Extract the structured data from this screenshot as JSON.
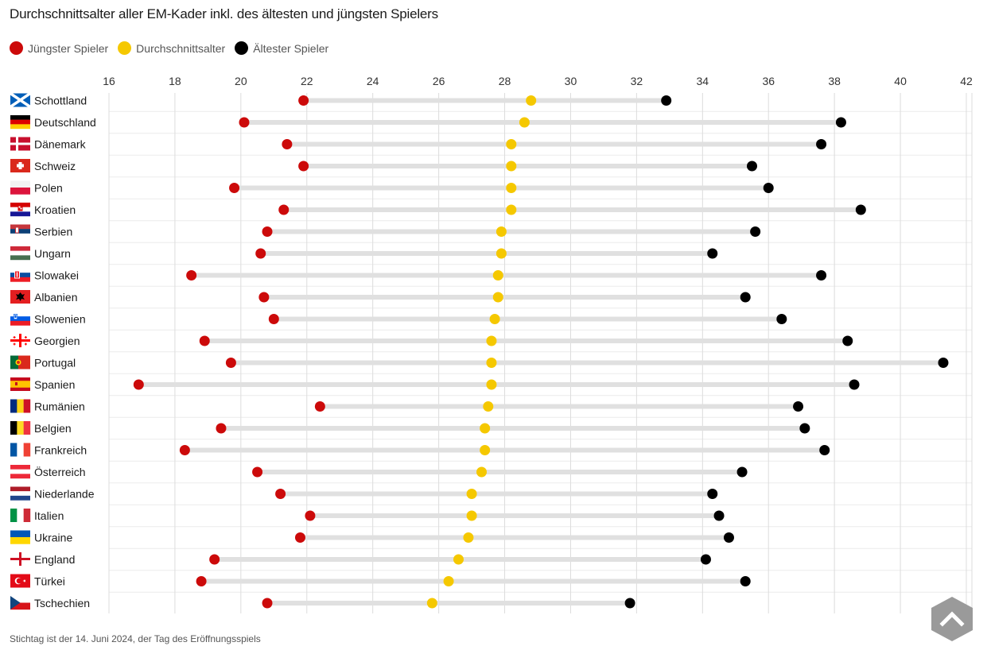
{
  "title": "Durchschnittsalter aller EM-Kader inkl. des ältesten und jüngsten Spielers",
  "legend": [
    {
      "label": "Jüngster Spieler",
      "color": "#cc0a0a"
    },
    {
      "label": "Durchschnittsalter",
      "color": "#f5c800"
    },
    {
      "label": "Ältester Spieler",
      "color": "#000000"
    }
  ],
  "footnote": "Stichtag ist der 14. Juni 2024, der Tag des Eröffnungsspiels",
  "scroll_icon": "chevron-up-icon",
  "chart_data": {
    "type": "dumbbell",
    "title": "Durchschnittsalter aller EM-Kader inkl. des ältesten und jüngsten Spielers",
    "xlim": [
      16,
      42
    ],
    "xticks": [
      "16",
      "18",
      "20",
      "22",
      "24",
      "26",
      "28",
      "30",
      "32",
      "34",
      "36",
      "38",
      "40",
      "42"
    ],
    "tick_values": [
      16,
      18,
      20,
      22,
      24,
      26,
      28,
      30,
      32,
      34,
      36,
      38,
      40,
      42
    ],
    "grid": true,
    "legend_position": "top-left",
    "series_names": [
      "Jüngster Spieler",
      "Durchschnittsalter",
      "Ältester Spieler"
    ],
    "rows": [
      {
        "country": "Schottland",
        "flag": "scotland-flag",
        "youngest": 21.9,
        "average": 28.8,
        "oldest": 32.9
      },
      {
        "country": "Deutschland",
        "flag": "germany-flag",
        "youngest": 20.1,
        "average": 28.6,
        "oldest": 38.2
      },
      {
        "country": "Dänemark",
        "flag": "denmark-flag",
        "youngest": 21.4,
        "average": 28.2,
        "oldest": 37.6
      },
      {
        "country": "Schweiz",
        "flag": "switzerland-flag",
        "youngest": 21.9,
        "average": 28.2,
        "oldest": 35.5
      },
      {
        "country": "Polen",
        "flag": "poland-flag",
        "youngest": 19.8,
        "average": 28.2,
        "oldest": 36.0
      },
      {
        "country": "Kroatien",
        "flag": "croatia-flag",
        "youngest": 21.3,
        "average": 28.2,
        "oldest": 38.8
      },
      {
        "country": "Serbien",
        "flag": "serbia-flag",
        "youngest": 20.8,
        "average": 27.9,
        "oldest": 35.6
      },
      {
        "country": "Ungarn",
        "flag": "hungary-flag",
        "youngest": 20.6,
        "average": 27.9,
        "oldest": 34.3
      },
      {
        "country": "Slowakei",
        "flag": "slovakia-flag",
        "youngest": 18.5,
        "average": 27.8,
        "oldest": 37.6
      },
      {
        "country": "Albanien",
        "flag": "albania-flag",
        "youngest": 20.7,
        "average": 27.8,
        "oldest": 35.3
      },
      {
        "country": "Slowenien",
        "flag": "slovenia-flag",
        "youngest": 21.0,
        "average": 27.7,
        "oldest": 36.4
      },
      {
        "country": "Georgien",
        "flag": "georgia-flag",
        "youngest": 18.9,
        "average": 27.6,
        "oldest": 38.4
      },
      {
        "country": "Portugal",
        "flag": "portugal-flag",
        "youngest": 19.7,
        "average": 27.6,
        "oldest": 41.3
      },
      {
        "country": "Spanien",
        "flag": "spain-flag",
        "youngest": 16.9,
        "average": 27.6,
        "oldest": 38.6
      },
      {
        "country": "Rumänien",
        "flag": "romania-flag",
        "youngest": 22.4,
        "average": 27.5,
        "oldest": 36.9
      },
      {
        "country": "Belgien",
        "flag": "belgium-flag",
        "youngest": 19.4,
        "average": 27.4,
        "oldest": 37.1
      },
      {
        "country": "Frankreich",
        "flag": "france-flag",
        "youngest": 18.3,
        "average": 27.4,
        "oldest": 37.7
      },
      {
        "country": "Österreich",
        "flag": "austria-flag",
        "youngest": 20.5,
        "average": 27.3,
        "oldest": 35.2
      },
      {
        "country": "Niederlande",
        "flag": "netherlands-flag",
        "youngest": 21.2,
        "average": 27.0,
        "oldest": 34.3
      },
      {
        "country": "Italien",
        "flag": "italy-flag",
        "youngest": 22.1,
        "average": 27.0,
        "oldest": 34.5
      },
      {
        "country": "Ukraine",
        "flag": "ukraine-flag",
        "youngest": 21.8,
        "average": 26.9,
        "oldest": 34.8
      },
      {
        "country": "England",
        "flag": "england-flag",
        "youngest": 19.2,
        "average": 26.6,
        "oldest": 34.1
      },
      {
        "country": "Türkei",
        "flag": "turkey-flag",
        "youngest": 18.8,
        "average": 26.3,
        "oldest": 35.3
      },
      {
        "country": "Tschechien",
        "flag": "czechia-flag",
        "youngest": 20.8,
        "average": 25.8,
        "oldest": 31.8
      }
    ]
  }
}
